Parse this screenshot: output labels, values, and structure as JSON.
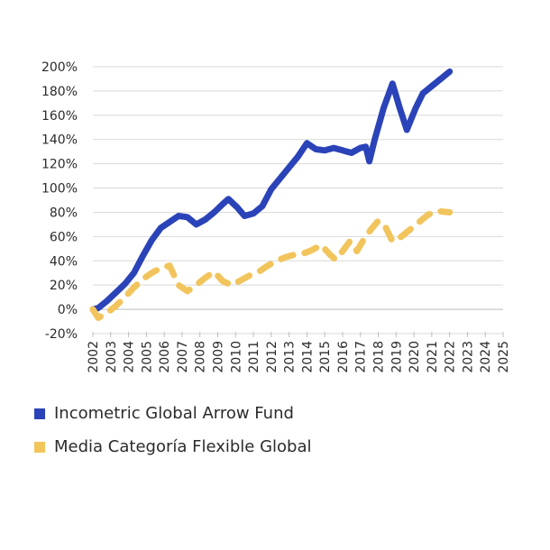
{
  "chart_data": {
    "type": "line",
    "title": "",
    "xlabel": "",
    "ylabel": "",
    "ylim": [
      -20,
      200
    ],
    "ytick_labels": [
      "-20%",
      "0%",
      "20%",
      "40%",
      "60%",
      "80%",
      "100%",
      "120%",
      "140%",
      "160%",
      "180%",
      "200%"
    ],
    "ytick_values": [
      -20,
      0,
      20,
      40,
      60,
      80,
      100,
      120,
      140,
      160,
      180,
      200
    ],
    "categories": [
      "2002",
      "2003",
      "2004",
      "2005",
      "2006",
      "2007",
      "2008",
      "2009",
      "2010",
      "2011",
      "2012",
      "2013",
      "2014",
      "2015",
      "2016",
      "2017",
      "2018",
      "2019",
      "2020",
      "2021",
      "2022",
      "2023",
      "2024",
      "2025"
    ],
    "grid": true,
    "legend_position": "bottom",
    "series": [
      {
        "name": "Incometric Global Arrow Fund",
        "color": "#2b43b8",
        "style": "solid",
        "points": [
          [
            2002.0,
            0
          ],
          [
            2002.3,
            1
          ],
          [
            2002.8,
            7
          ],
          [
            2003.3,
            14
          ],
          [
            2003.8,
            21
          ],
          [
            2004.3,
            30
          ],
          [
            2004.8,
            44
          ],
          [
            2005.3,
            57
          ],
          [
            2005.8,
            67
          ],
          [
            2006.3,
            72
          ],
          [
            2006.8,
            77
          ],
          [
            2007.3,
            76
          ],
          [
            2007.8,
            70
          ],
          [
            2008.3,
            74
          ],
          [
            2008.8,
            80
          ],
          [
            2009.3,
            87
          ],
          [
            2009.6,
            91
          ],
          [
            2010.1,
            84
          ],
          [
            2010.5,
            77
          ],
          [
            2011.0,
            79
          ],
          [
            2011.5,
            85
          ],
          [
            2012.0,
            99
          ],
          [
            2012.5,
            108
          ],
          [
            2013.0,
            117
          ],
          [
            2013.5,
            126
          ],
          [
            2014.0,
            137
          ],
          [
            2014.5,
            132
          ],
          [
            2015.0,
            131
          ],
          [
            2015.5,
            133
          ],
          [
            2016.0,
            131
          ],
          [
            2016.5,
            129
          ],
          [
            2017.0,
            133
          ],
          [
            2017.3,
            134
          ],
          [
            2017.5,
            122
          ],
          [
            2017.8,
            140
          ],
          [
            2018.3,
            166
          ],
          [
            2018.8,
            186
          ],
          [
            2019.2,
            166
          ],
          [
            2019.6,
            148
          ],
          [
            2020.1,
            166
          ],
          [
            2020.5,
            178
          ],
          [
            2021.0,
            184
          ],
          [
            2021.5,
            190
          ],
          [
            2022.0,
            196
          ]
        ]
      },
      {
        "name": "Media Categoría Flexible Global",
        "color": "#f2c45c",
        "style": "dashed",
        "points": [
          [
            2002.0,
            0
          ],
          [
            2002.3,
            -7
          ],
          [
            2002.8,
            -3
          ],
          [
            2003.3,
            3
          ],
          [
            2003.8,
            10
          ],
          [
            2004.3,
            18
          ],
          [
            2004.8,
            25
          ],
          [
            2005.3,
            30
          ],
          [
            2005.8,
            34
          ],
          [
            2006.3,
            36
          ],
          [
            2006.8,
            20
          ],
          [
            2007.3,
            15
          ],
          [
            2007.8,
            20
          ],
          [
            2008.3,
            26
          ],
          [
            2008.8,
            31
          ],
          [
            2009.3,
            23
          ],
          [
            2009.8,
            20
          ],
          [
            2010.3,
            24
          ],
          [
            2010.8,
            28
          ],
          [
            2011.3,
            31
          ],
          [
            2011.8,
            36
          ],
          [
            2012.3,
            40
          ],
          [
            2012.8,
            43
          ],
          [
            2013.3,
            45
          ],
          [
            2013.8,
            46
          ],
          [
            2014.3,
            49
          ],
          [
            2014.8,
            53
          ],
          [
            2015.3,
            45
          ],
          [
            2015.6,
            41
          ],
          [
            2016.0,
            48
          ],
          [
            2016.4,
            56
          ],
          [
            2016.8,
            48
          ],
          [
            2017.2,
            58
          ],
          [
            2017.6,
            66
          ],
          [
            2018.0,
            73
          ],
          [
            2018.4,
            68
          ],
          [
            2018.8,
            56
          ],
          [
            2019.3,
            60
          ],
          [
            2019.8,
            66
          ],
          [
            2020.3,
            72
          ],
          [
            2020.8,
            78
          ],
          [
            2021.3,
            81
          ],
          [
            2022.0,
            80
          ]
        ]
      }
    ]
  },
  "legend": {
    "items": [
      {
        "label": "Incometric Global Arrow Fund",
        "color": "#2b43b8"
      },
      {
        "label": "Media Categoría Flexible Global",
        "color": "#f2c45c"
      }
    ]
  }
}
